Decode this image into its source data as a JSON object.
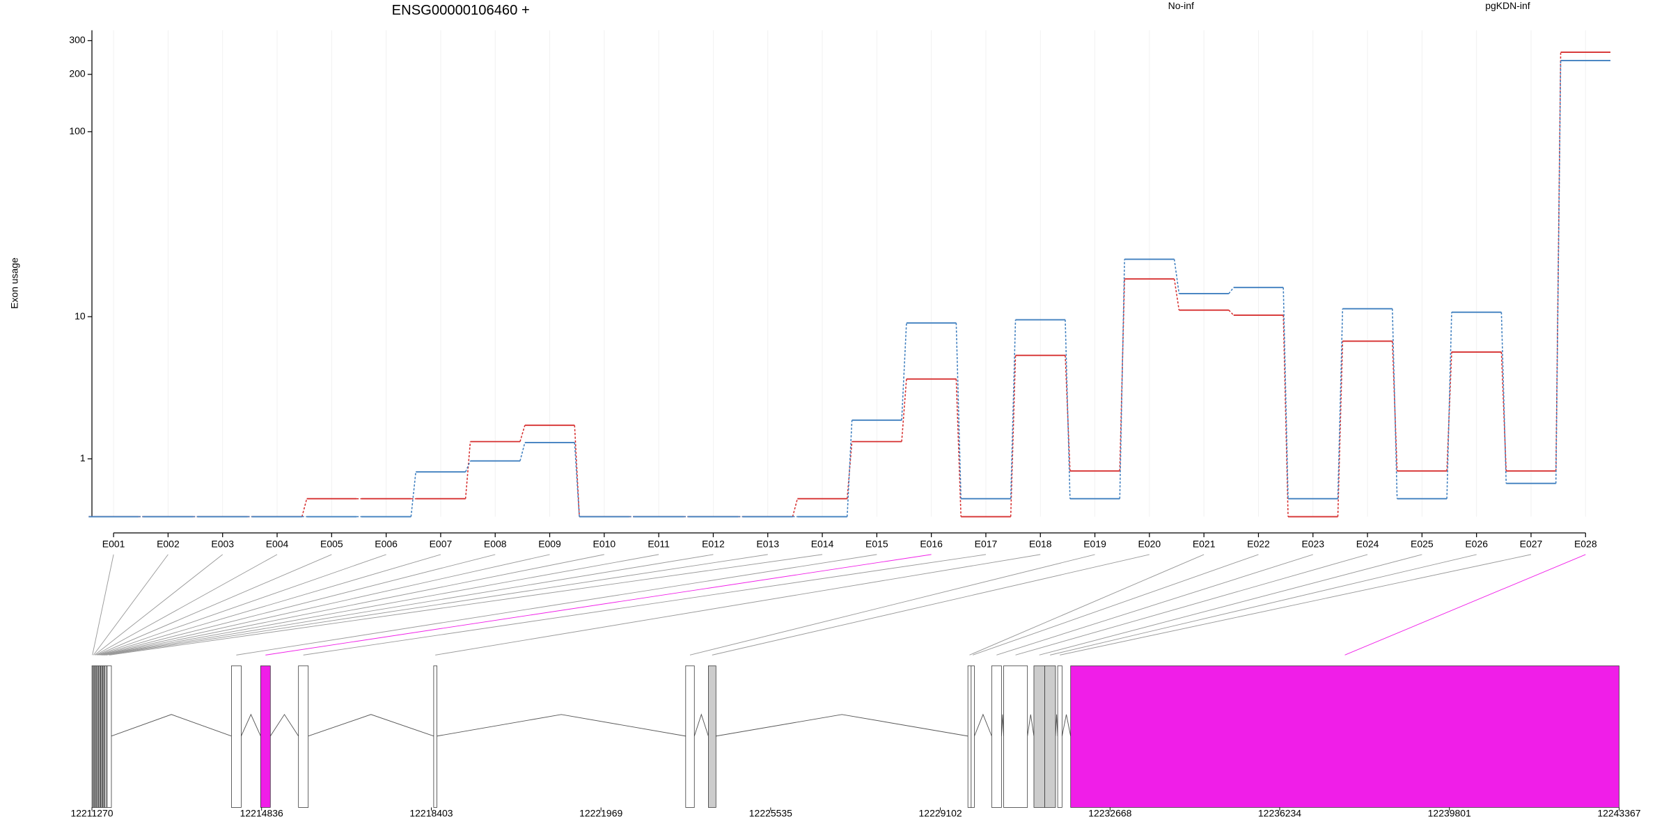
{
  "chart_data": [
    {
      "type": "line",
      "title": "ENSG00000106460 +",
      "y_label": "Exon usage",
      "yscale": "log1p",
      "categories": [
        "E001",
        "E002",
        "E003",
        "E004",
        "E005",
        "E006",
        "E007",
        "E008",
        "E009",
        "E010",
        "E011",
        "E012",
        "E013",
        "E014",
        "E015",
        "E016",
        "E017",
        "E018",
        "E019",
        "E020",
        "E021",
        "E022",
        "E023",
        "E024",
        "E025",
        "E026",
        "E027",
        "E028"
      ],
      "series": [
        {
          "name": "No-inf",
          "color": "#d62f2f",
          "values": [
            0,
            0,
            0,
            0,
            0.24,
            0.24,
            0.24,
            1.46,
            1.99,
            0,
            0,
            0,
            0,
            0.24,
            1.46,
            4.21,
            0,
            5.92,
            0.73,
            16.3,
            10.9,
            10.2,
            0,
            7.2,
            0.73,
            6.2,
            0.73,
            261
          ]
        },
        {
          "name": "pgKDN-inf",
          "color": "#3f7fbf",
          "values": [
            0,
            0,
            0,
            0,
            0,
            0,
            0.71,
            0.95,
            1.43,
            0,
            0,
            0,
            0,
            0,
            2.18,
            9.2,
            0.24,
            9.6,
            0.24,
            20.9,
            13.5,
            14.6,
            0.24,
            11.1,
            0.24,
            10.6,
            0.49,
            236
          ]
        }
      ],
      "ylim": [
        0,
        340
      ],
      "yticks": [
        1,
        10,
        100,
        200,
        300
      ],
      "grid": true
    },
    {
      "type": "gene-model",
      "xlim": [
        12211270,
        12243367
      ],
      "xticks": [
        12211270,
        12214836,
        12218403,
        12221969,
        12225535,
        12229102,
        12232668,
        12236234,
        12239801,
        12243367
      ],
      "exon_starts": [
        12211270,
        12211293,
        12211316,
        12211339,
        12211362,
        12211385,
        12211408,
        12211431,
        12211454,
        12211477,
        12211500,
        12211523,
        12211546,
        12211588,
        12214202,
        12214816,
        12215611,
        12218453,
        12223749,
        12224226,
        12229681,
        12229749,
        12230181,
        12230432,
        12231068,
        12231295,
        12231568,
        12231840
      ],
      "exon_ends": [
        12211290,
        12211313,
        12211336,
        12211359,
        12211382,
        12211405,
        12211428,
        12211451,
        12211474,
        12211497,
        12211520,
        12211543,
        12211580,
        12211679,
        12214407,
        12215020,
        12215816,
        12218521,
        12223931,
        12224385,
        12229749,
        12229817,
        12230386,
        12230932,
        12231295,
        12231522,
        12231659,
        12243367
      ],
      "exon_fills": [
        "#ffffff",
        "#ffffff",
        "#ffffff",
        "#ffffff",
        "#ffffff",
        "#ffffff",
        "#ffffff",
        "#ffffff",
        "#ffffff",
        "#ffffff",
        "#ffffff",
        "#ffffff",
        "#ffffff",
        "#ffffff",
        "#ffffff",
        "#f01ee8",
        "#ffffff",
        "#ffffff",
        "#ffffff",
        "#cccccc",
        "#ffffff",
        "#ffffff",
        "#ffffff",
        "#ffffff",
        "#cccccc",
        "#cccccc",
        "#ffffff",
        "#f01ee8"
      ],
      "significant": [
        false,
        false,
        false,
        false,
        false,
        false,
        false,
        false,
        false,
        false,
        false,
        false,
        false,
        false,
        false,
        true,
        false,
        false,
        false,
        false,
        false,
        false,
        false,
        false,
        false,
        false,
        false,
        true
      ]
    }
  ]
}
